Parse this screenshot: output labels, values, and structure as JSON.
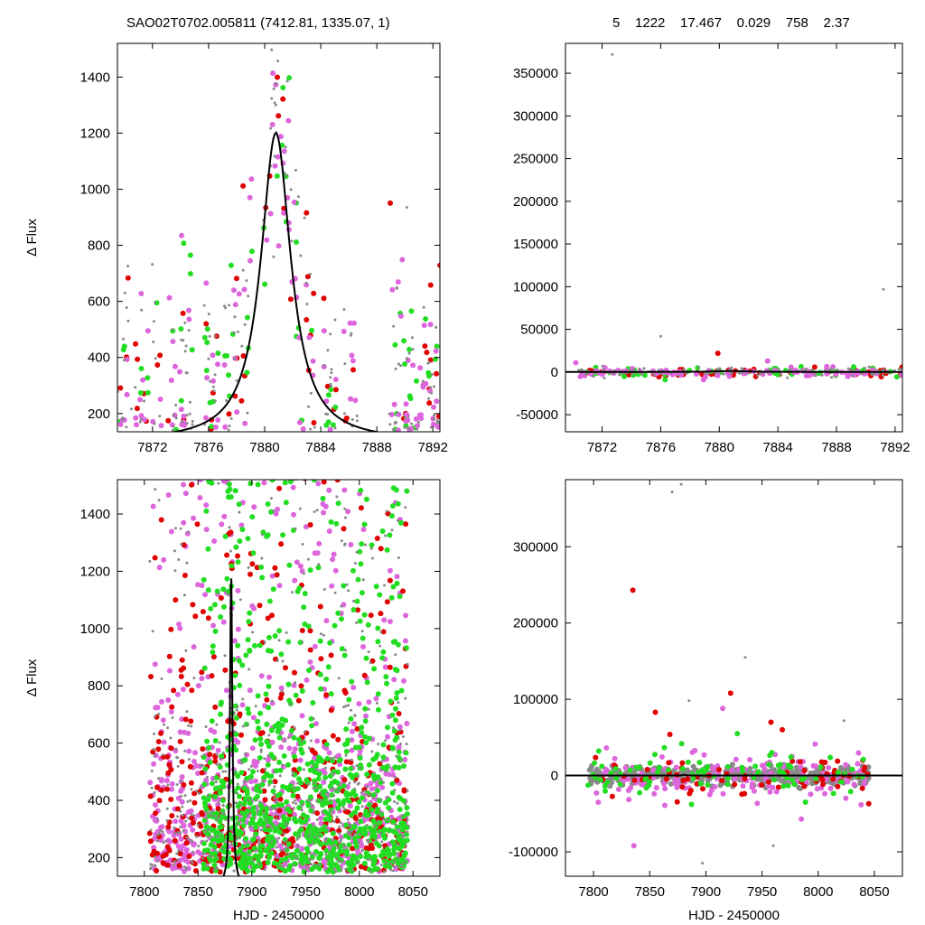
{
  "header": {
    "left": "SAO02T0702.005811 (7412.81, 1335.07,    1)",
    "right": "5    1222    17.467    0.029    758    2.37"
  },
  "colors": {
    "red": "#e00000",
    "green": "#22dd22",
    "magenta": "#dd66dd",
    "gray": "#888888",
    "model": "#000000"
  },
  "chart_data": [
    {
      "type": "scatter",
      "panel": "top-left",
      "xlabel": "",
      "ylabel": "Δ Flux",
      "xlim": [
        7869.5,
        7892.5
      ],
      "ylim": [
        135,
        1520
      ],
      "xticks": [
        7872,
        7876,
        7880,
        7884,
        7888,
        7892
      ],
      "yticks": [
        200,
        400,
        600,
        800,
        1000,
        1200,
        1400
      ],
      "model": {
        "shape": "lorentzian",
        "center": 7880.8,
        "peak": 1200,
        "width": 1.3,
        "baseline": 100
      },
      "seed": 11,
      "series": [
        {
          "color": "red",
          "count": 60,
          "mode": "event"
        },
        {
          "color": "green",
          "count": 75,
          "mode": "event"
        },
        {
          "color": "magenta",
          "count": 130,
          "mode": "event"
        },
        {
          "color": "gray",
          "count": 170,
          "mode": "event",
          "small": true
        }
      ]
    },
    {
      "type": "scatter",
      "panel": "top-right",
      "xlabel": "",
      "ylabel": "",
      "xlim": [
        7869.5,
        7892.5
      ],
      "ylim": [
        -70000,
        385000
      ],
      "xticks": [
        7872,
        7876,
        7880,
        7884,
        7888,
        7892
      ],
      "yticks": [
        -50000,
        0,
        50000,
        100000,
        150000,
        200000,
        250000,
        300000,
        350000
      ],
      "model": {
        "shape": "lorentzian",
        "center": 7880.8,
        "peak": 1200,
        "width": 1.3,
        "baseline": 100
      },
      "seed": 23,
      "outliers": [
        [
          7872.7,
          372000,
          "gray"
        ],
        [
          7891.2,
          97000,
          "gray"
        ],
        [
          7876.0,
          42000,
          "gray"
        ],
        [
          7879.9,
          22000,
          "red"
        ],
        [
          7883.3,
          13000,
          "magenta"
        ],
        [
          7870.2,
          11000,
          "magenta"
        ],
        [
          7876.3,
          -9000,
          "green"
        ]
      ],
      "series": [
        {
          "color": "red",
          "count": 60,
          "mode": "band",
          "spread": 2500
        },
        {
          "color": "green",
          "count": 60,
          "mode": "band",
          "spread": 2500
        },
        {
          "color": "magenta",
          "count": 90,
          "mode": "band",
          "spread": 2500
        },
        {
          "color": "gray",
          "count": 120,
          "mode": "band",
          "spread": 2500,
          "small": true
        }
      ]
    },
    {
      "type": "scatter",
      "panel": "bottom-left",
      "xlabel": "HJD - 2450000",
      "ylabel": "Δ Flux",
      "xlim": [
        7775,
        8075
      ],
      "ylim": [
        135,
        1520
      ],
      "xticks": [
        7800,
        7850,
        7900,
        7950,
        8000,
        8050
      ],
      "yticks": [
        200,
        400,
        600,
        800,
        1000,
        1200,
        1400
      ],
      "model": {
        "shape": "lorentzian",
        "center": 7880.8,
        "peak": 1200,
        "width": 1.3,
        "baseline": 100
      },
      "seed": 37,
      "series": [
        {
          "color": "magenta",
          "count": 700,
          "mode": "dense",
          "xrange": [
            7805,
            8045
          ]
        },
        {
          "color": "red",
          "count": 420,
          "mode": "dense",
          "xrange": [
            7805,
            8045
          ]
        },
        {
          "color": "green",
          "count": 900,
          "mode": "dense",
          "xrange": [
            7855,
            8045
          ]
        },
        {
          "color": "gray",
          "count": 500,
          "mode": "dense",
          "xrange": [
            7805,
            8045
          ],
          "small": true
        }
      ]
    },
    {
      "type": "scatter",
      "panel": "bottom-right",
      "xlabel": "HJD - 2450000",
      "ylabel": "",
      "xlim": [
        7775,
        8075
      ],
      "ylim": [
        -132000,
        388000
      ],
      "xticks": [
        7800,
        7850,
        7900,
        7950,
        8000,
        8050
      ],
      "yticks": [
        -100000,
        0,
        100000,
        200000,
        300000
      ],
      "model": {
        "shape": "lorentzian",
        "center": 7880.8,
        "peak": 1200,
        "width": 1.3,
        "baseline": 100
      },
      "seed": 53,
      "outliers": [
        [
          7835,
          243000,
          "red"
        ],
        [
          7922,
          108000,
          "red"
        ],
        [
          7855,
          83000,
          "red"
        ],
        [
          7868,
          54000,
          "red"
        ],
        [
          7958,
          70000,
          "red"
        ],
        [
          7968,
          60000,
          "red"
        ],
        [
          7928,
          55000,
          "green"
        ],
        [
          7915,
          88000,
          "magenta"
        ],
        [
          7836,
          -92000,
          "magenta"
        ],
        [
          7985,
          -57000,
          "magenta"
        ],
        [
          7870,
          372000,
          "gray"
        ],
        [
          7935,
          155000,
          "gray"
        ],
        [
          7885,
          98000,
          "gray"
        ],
        [
          8023,
          72000,
          "gray"
        ],
        [
          7897,
          -115000,
          "gray"
        ],
        [
          7960,
          -92000,
          "gray"
        ],
        [
          8045,
          -37000,
          "red"
        ],
        [
          7878,
          382000,
          "gray"
        ]
      ],
      "series": [
        {
          "color": "gray",
          "count": 420,
          "mode": "band",
          "spread": 6000,
          "xrange": [
            7795,
            8045
          ]
        },
        {
          "color": "magenta",
          "count": 140,
          "mode": "band",
          "spread": 15000,
          "xrange": [
            7800,
            8045
          ]
        },
        {
          "color": "red",
          "count": 70,
          "mode": "band",
          "spread": 15000,
          "xrange": [
            7800,
            8045
          ]
        },
        {
          "color": "green",
          "count": 90,
          "mode": "band",
          "spread": 15000,
          "xrange": [
            7795,
            8045
          ]
        }
      ]
    }
  ]
}
